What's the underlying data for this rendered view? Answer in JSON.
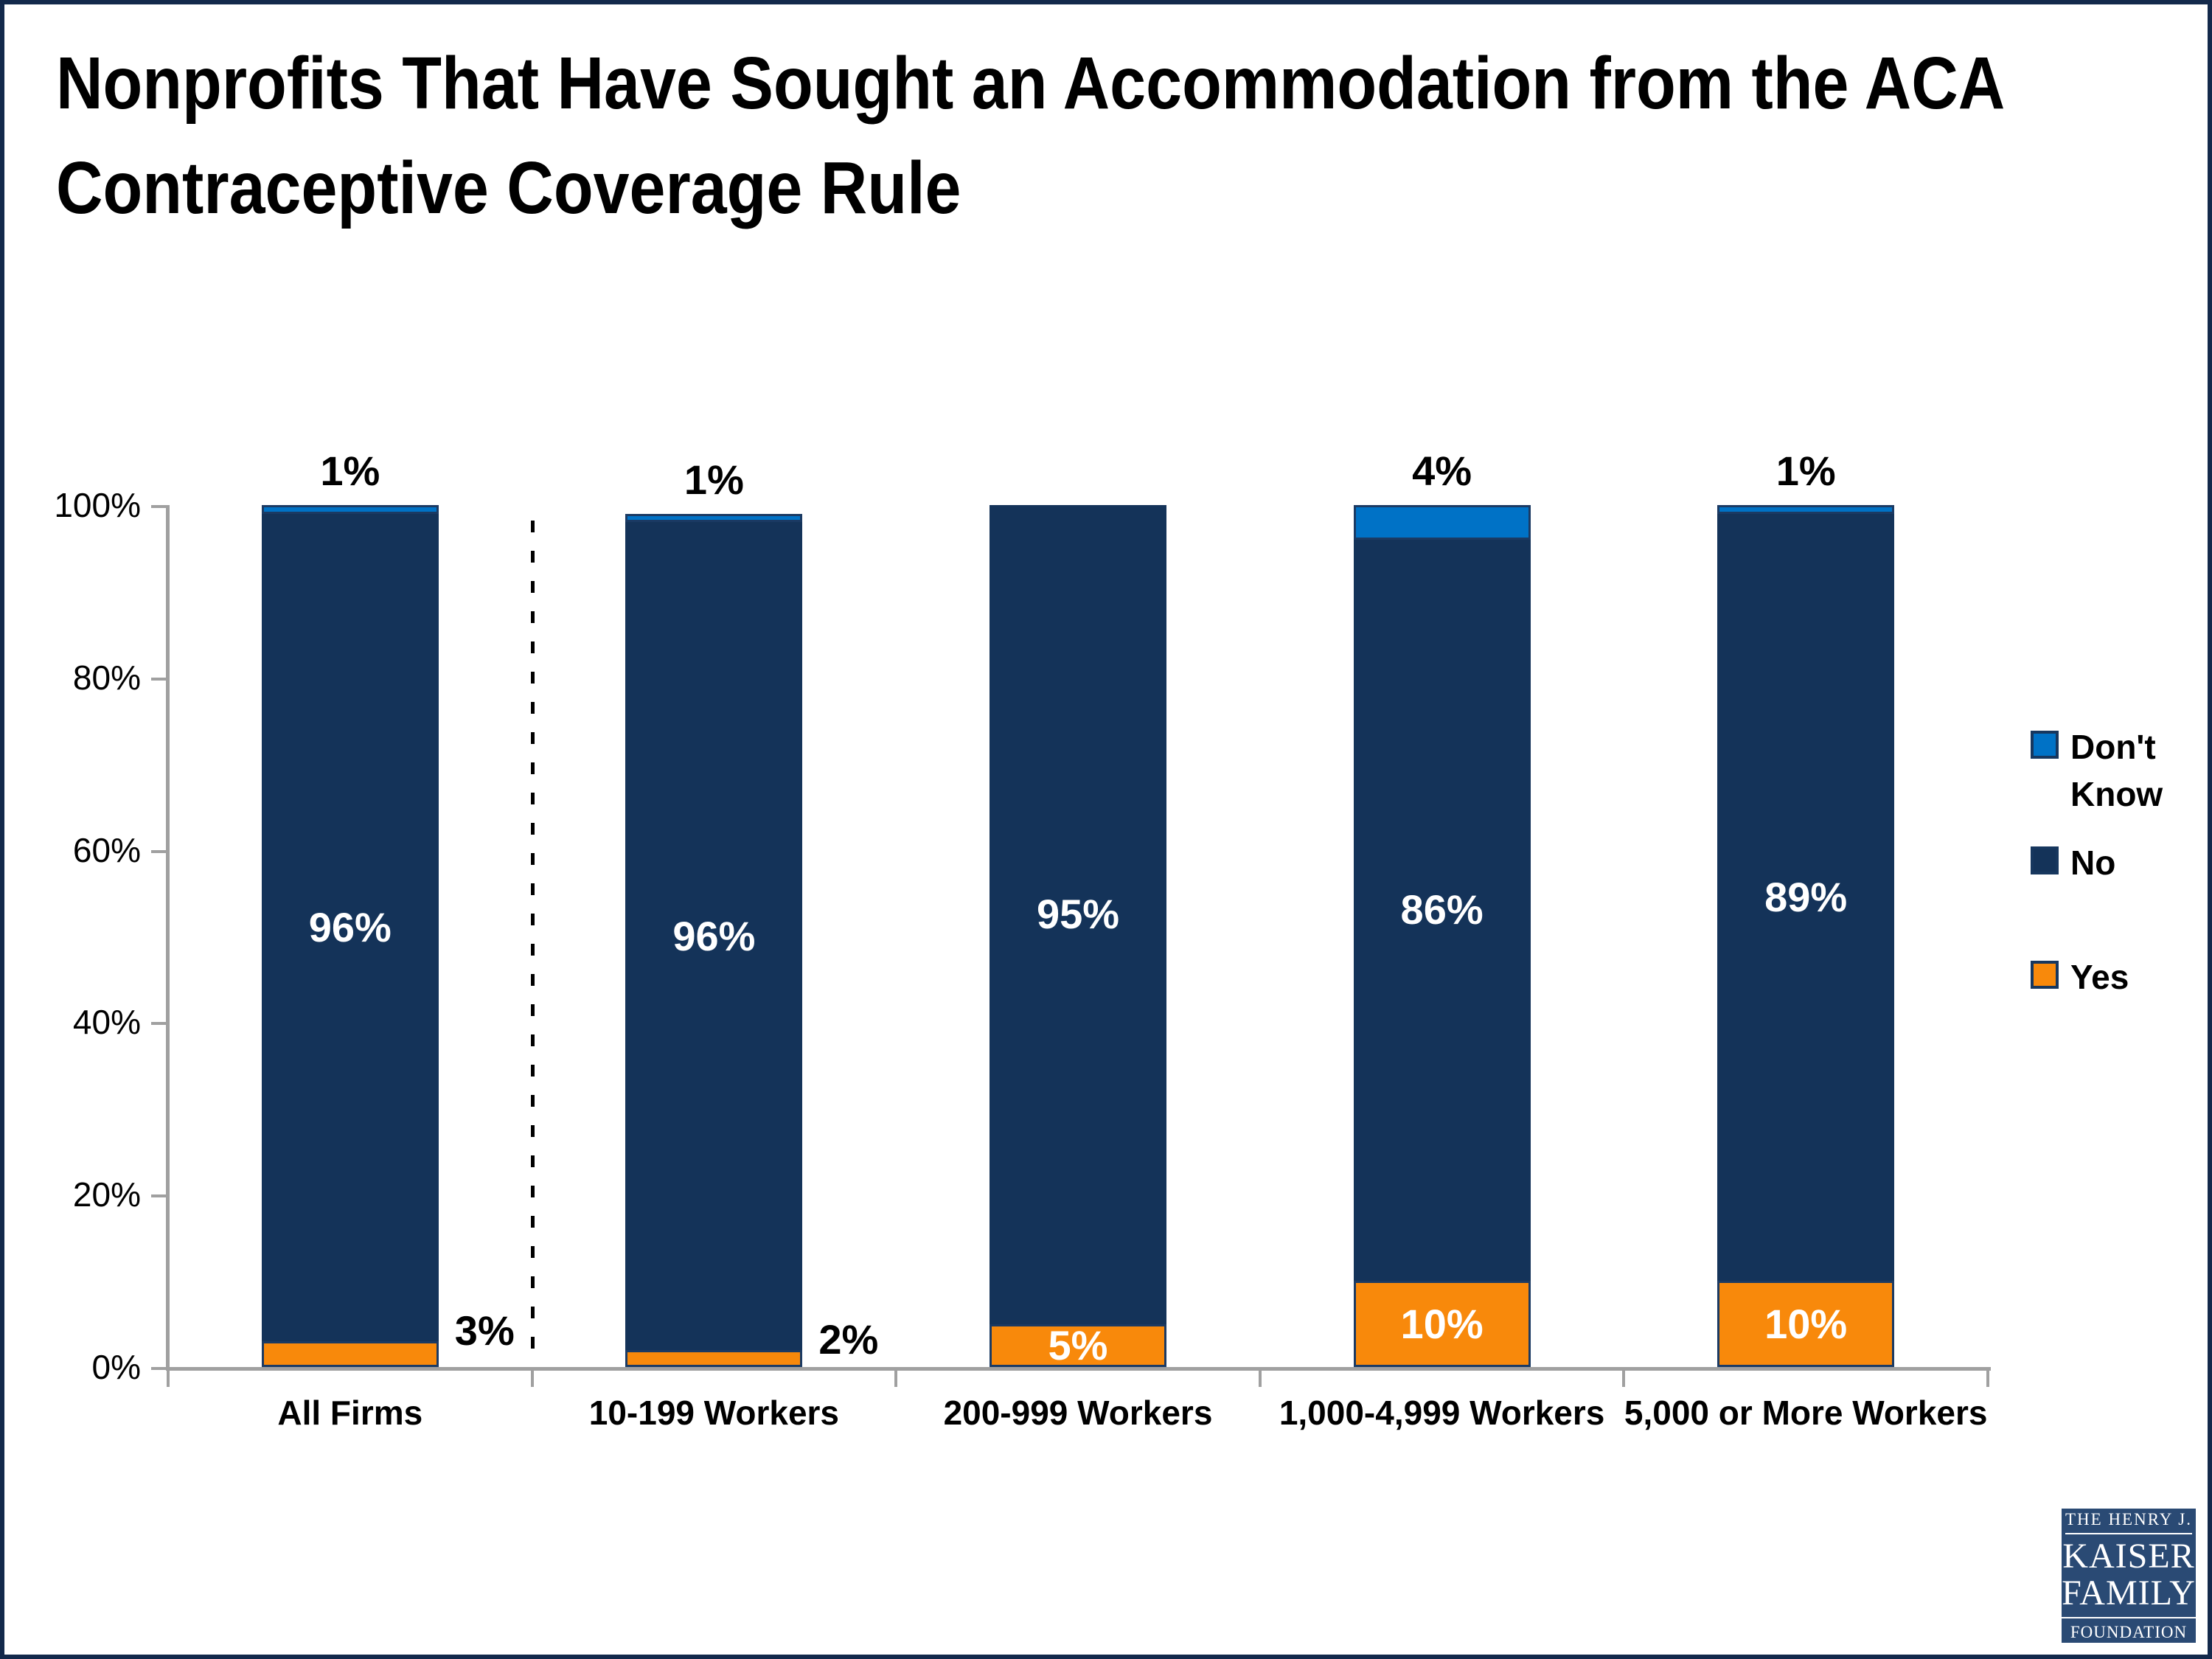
{
  "page": {
    "title_lines": [
      "Nonprofits That Have Sought an Accommodation from the ACA",
      "Contraceptive Coverage Rule"
    ]
  },
  "chart_data": {
    "type": "bar",
    "stacked": true,
    "title": "Nonprofits That Have Sought an Accommodation from the ACA Contraceptive Coverage Rule",
    "categories": [
      "All Firms",
      "10-199 Workers",
      "200-999 Workers",
      "1,000-4,999 Workers",
      "5,000 or More Workers"
    ],
    "series": [
      {
        "name": "Yes",
        "color": "#F8890B",
        "values": [
          3,
          2,
          5,
          10,
          10
        ],
        "labels": [
          "3%",
          "2%",
          "5%",
          "10%",
          "10%"
        ],
        "label_placement": [
          "outside",
          "outside",
          "inside",
          "inside",
          "inside"
        ]
      },
      {
        "name": "No",
        "color": "#143359",
        "values": [
          96,
          96,
          95,
          86,
          89
        ],
        "labels": [
          "96%",
          "96%",
          "95%",
          "86%",
          "89%"
        ],
        "label_placement": [
          "inside",
          "inside",
          "inside",
          "inside",
          "inside"
        ]
      },
      {
        "name": "Don't Know",
        "color": "#0072C6",
        "values": [
          1,
          1,
          0,
          4,
          1
        ],
        "labels": [
          "1%",
          "1%",
          "",
          "4%",
          "1%"
        ],
        "label_placement": [
          "above",
          "above",
          "above",
          "above",
          "above"
        ]
      }
    ],
    "y_axis": {
      "ticks": [
        "100%",
        "80%",
        "60%",
        "40%",
        "20%",
        "0%"
      ],
      "min": 0,
      "max": 100
    },
    "legend": {
      "position": "right",
      "items": [
        {
          "label": "Don't Know",
          "color": "#0072C6"
        },
        {
          "label": "No",
          "color": "#143359"
        },
        {
          "label": "Yes",
          "color": "#F8890B"
        }
      ]
    },
    "separator": {
      "after_category_index": 0,
      "style": "dashed"
    },
    "grid": false
  },
  "logo": {
    "top": "THE HENRY J.",
    "name1": "KAISER",
    "name2": "FAMILY",
    "bottom": "FOUNDATION"
  }
}
